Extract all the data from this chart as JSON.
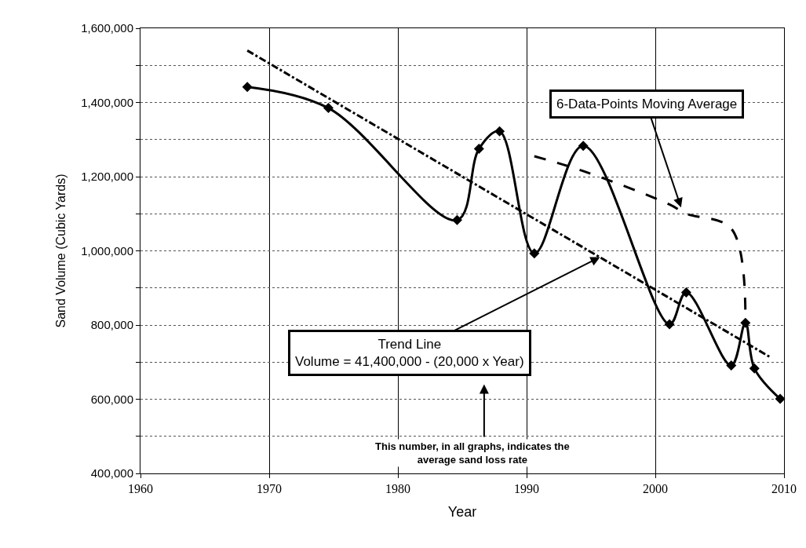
{
  "chart_data": {
    "type": "line",
    "xlabel": "Year",
    "ylabel": "Sand Volume (Cubic Yards)",
    "series": [
      {
        "color": "#000000",
        "marker": "diamond",
        "line_style": "solid",
        "x": [
          1968.3,
          1974.6,
          1984.6,
          1986.3,
          1987.9,
          1990.6,
          1994.4,
          2001.1,
          2002.4,
          2005.9,
          2007.0,
          2007.7,
          2009.7
        ],
        "values": [
          1442000,
          1385000,
          1083000,
          1275000,
          1322000,
          993000,
          1283000,
          802000,
          888000,
          691000,
          806000,
          683000,
          601000
        ]
      },
      {
        "color": "#000000",
        "marker": "none",
        "line_style": "dashdot",
        "x": [
          1968.3,
          2008.9
        ],
        "values": [
          1540000,
          714000
        ]
      },
      {
        "color": "#000000",
        "marker": "none",
        "line_style": "dashed",
        "x": [
          1990.6,
          1994.4,
          2001.1,
          2002.4,
          2005.9,
          2007.0
        ],
        "values": [
          1255000,
          1215000,
          1125000,
          1100000,
          1060000,
          795000
        ]
      }
    ],
    "xlim": [
      1960,
      2010
    ],
    "xticks": [
      1960,
      1970,
      1980,
      1990,
      2000,
      2010
    ],
    "ylim": [
      400000,
      1600000
    ],
    "yticks": [
      {
        "value": 400000,
        "label": "400,000"
      },
      {
        "value": 500000,
        "label": null
      },
      {
        "value": 600000,
        "label": "600,000"
      },
      {
        "value": 700000,
        "label": null
      },
      {
        "value": 800000,
        "label": "800,000"
      },
      {
        "value": 900000,
        "label": null
      },
      {
        "value": 1000000,
        "label": "1,000,000"
      },
      {
        "value": 1100000,
        "label": null
      },
      {
        "value": 1200000,
        "label": "1,200,000"
      },
      {
        "value": 1300000,
        "label": null
      },
      {
        "value": 1400000,
        "label": "1,400,000"
      },
      {
        "value": 1500000,
        "label": null
      },
      {
        "value": 1600000,
        "label": "1,600,000"
      }
    ],
    "grid": true,
    "annotations": [
      {
        "text": "6-Data-Points Moving Average",
        "x": 2002.0,
        "y": 1117000
      },
      {
        "text": "Trend Line\nVolume = 41,400,000 - (20,000 x Year)",
        "x": 1995.7,
        "y": 983000
      },
      "This number, in all graphs, indicates the\naverage sand loss rate"
    ]
  }
}
